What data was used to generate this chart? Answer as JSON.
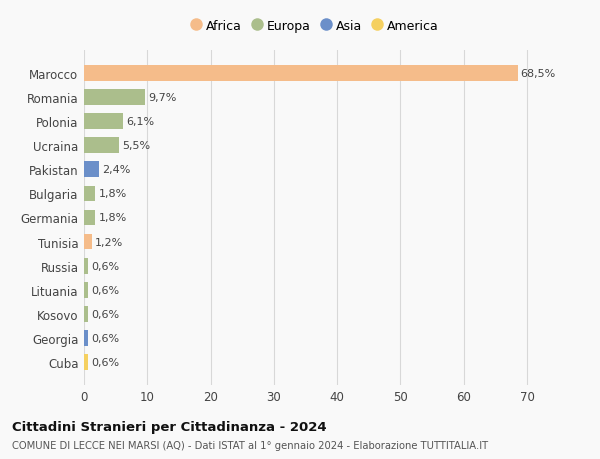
{
  "countries": [
    "Marocco",
    "Romania",
    "Polonia",
    "Ucraina",
    "Pakistan",
    "Bulgaria",
    "Germania",
    "Tunisia",
    "Russia",
    "Lituania",
    "Kosovo",
    "Georgia",
    "Cuba"
  ],
  "values": [
    68.5,
    9.7,
    6.1,
    5.5,
    2.4,
    1.8,
    1.8,
    1.2,
    0.6,
    0.6,
    0.6,
    0.6,
    0.6
  ],
  "labels": [
    "68,5%",
    "9,7%",
    "6,1%",
    "5,5%",
    "2,4%",
    "1,8%",
    "1,8%",
    "1,2%",
    "0,6%",
    "0,6%",
    "0,6%",
    "0,6%",
    "0,6%"
  ],
  "continents": [
    "Africa",
    "Europa",
    "Europa",
    "Europa",
    "Asia",
    "Europa",
    "Europa",
    "Africa",
    "Europa",
    "Europa",
    "Europa",
    "Asia",
    "America"
  ],
  "colors": {
    "Africa": "#F5BC8A",
    "Europa": "#ABBE8C",
    "Asia": "#6B8FC9",
    "America": "#F5D060"
  },
  "xlim": [
    0,
    73
  ],
  "xticks": [
    0,
    10,
    20,
    30,
    40,
    50,
    60,
    70
  ],
  "title": "Cittadini Stranieri per Cittadinanza - 2024",
  "subtitle": "COMUNE DI LECCE NEI MARSI (AQ) - Dati ISTAT al 1° gennaio 2024 - Elaborazione TUTTITALIA.IT",
  "background_color": "#f9f9f9",
  "grid_color": "#d8d8d8",
  "legend_order": [
    "Africa",
    "Europa",
    "Asia",
    "America"
  ]
}
